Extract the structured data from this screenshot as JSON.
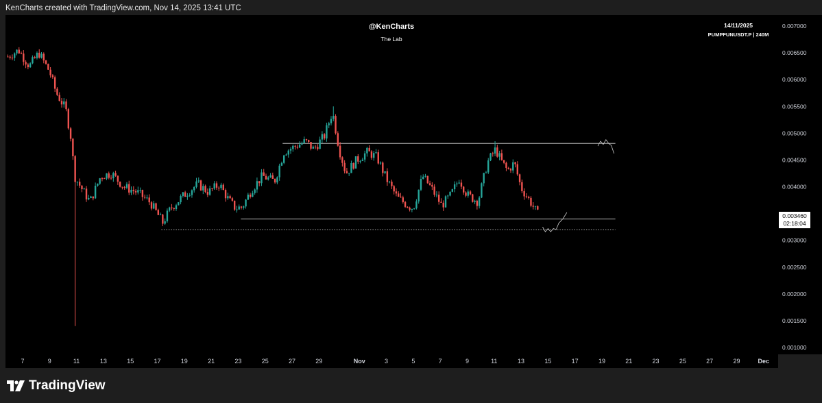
{
  "header_text": "KenCharts created with TradingView.com, Nov 14, 2025 13:41 UTC",
  "watermark": {
    "handle": "@KenCharts",
    "subtitle": "The Lab"
  },
  "info": {
    "date": "14/11/2025",
    "symbol": "PUMPFUNUSDT.P | 240M"
  },
  "logo_text": "TradingView",
  "last_price": {
    "price": "0.003460",
    "countdown": "02:18:04"
  },
  "colors": {
    "up": "#26a69a",
    "down": "#ef5350",
    "background": "#000000",
    "frame": "#1e1e1e",
    "line": "#d9d9d9"
  },
  "chart_data": {
    "type": "candlestick",
    "title": "",
    "y_axis": {
      "ticks": [
        "0.007000",
        "0.006500",
        "0.006000",
        "0.005500",
        "0.005000",
        "0.004500",
        "0.004000",
        "0.003000",
        "0.002500",
        "0.002000",
        "0.001500",
        "0.001000"
      ],
      "range": [
        0.0009,
        0.0072
      ]
    },
    "x_axis": {
      "ticks": [
        {
          "label": "7",
          "day": 7
        },
        {
          "label": "9",
          "day": 9
        },
        {
          "label": "11",
          "day": 11
        },
        {
          "label": "13",
          "day": 13
        },
        {
          "label": "15",
          "day": 15
        },
        {
          "label": "17",
          "day": 17
        },
        {
          "label": "19",
          "day": 19
        },
        {
          "label": "21",
          "day": 21
        },
        {
          "label": "23",
          "day": 23
        },
        {
          "label": "25",
          "day": 25
        },
        {
          "label": "27",
          "day": 27
        },
        {
          "label": "29",
          "day": 29
        },
        {
          "label": "Nov",
          "day": 32
        },
        {
          "label": "3",
          "day": 34
        },
        {
          "label": "5",
          "day": 36
        },
        {
          "label": "7",
          "day": 38
        },
        {
          "label": "9",
          "day": 40
        },
        {
          "label": "11",
          "day": 42
        },
        {
          "label": "13",
          "day": 44
        },
        {
          "label": "15",
          "day": 46
        },
        {
          "label": "17",
          "day": 48
        },
        {
          "label": "19",
          "day": 50
        },
        {
          "label": "21",
          "day": 52
        },
        {
          "label": "23",
          "day": 54
        },
        {
          "label": "25",
          "day": 56
        },
        {
          "label": "27",
          "day": 58
        },
        {
          "label": "29",
          "day": 60
        },
        {
          "label": "Dec",
          "day": 62
        }
      ]
    },
    "anchors": [
      {
        "day": 5.9,
        "price": 0.00643
      },
      {
        "day": 6.7,
        "price": 0.00655
      },
      {
        "day": 7.5,
        "price": 0.00625
      },
      {
        "day": 8.2,
        "price": 0.0065
      },
      {
        "day": 9.0,
        "price": 0.00615
      },
      {
        "day": 9.5,
        "price": 0.00575
      },
      {
        "day": 10.2,
        "price": 0.00545
      },
      {
        "day": 10.6,
        "price": 0.0049
      },
      {
        "day": 10.85,
        "price": 0.0042
      },
      {
        "day": 11.3,
        "price": 0.004
      },
      {
        "day": 12.0,
        "price": 0.00372
      },
      {
        "day": 12.8,
        "price": 0.0042
      },
      {
        "day": 13.6,
        "price": 0.00425
      },
      {
        "day": 14.5,
        "price": 0.004
      },
      {
        "day": 15.5,
        "price": 0.0039
      },
      {
        "day": 16.5,
        "price": 0.0037
      },
      {
        "day": 17.4,
        "price": 0.00333
      },
      {
        "day": 18.0,
        "price": 0.0036
      },
      {
        "day": 19.0,
        "price": 0.00385
      },
      {
        "day": 20.0,
        "price": 0.00405
      },
      {
        "day": 20.8,
        "price": 0.0039
      },
      {
        "day": 21.6,
        "price": 0.00405
      },
      {
        "day": 22.3,
        "price": 0.00375
      },
      {
        "day": 22.8,
        "price": 0.0036
      },
      {
        "day": 23.3,
        "price": 0.00362
      },
      {
        "day": 24.0,
        "price": 0.00395
      },
      {
        "day": 24.8,
        "price": 0.0042
      },
      {
        "day": 25.7,
        "price": 0.0041
      },
      {
        "day": 26.4,
        "price": 0.00465
      },
      {
        "day": 27.2,
        "price": 0.00475
      },
      {
        "day": 28.0,
        "price": 0.00485
      },
      {
        "day": 28.6,
        "price": 0.0047
      },
      {
        "day": 29.4,
        "price": 0.00495
      },
      {
        "day": 30.0,
        "price": 0.0054
      },
      {
        "day": 30.5,
        "price": 0.0047
      },
      {
        "day": 31.0,
        "price": 0.00425
      },
      {
        "day": 31.8,
        "price": 0.0045
      },
      {
        "day": 32.6,
        "price": 0.00465
      },
      {
        "day": 33.3,
        "price": 0.00455
      },
      {
        "day": 34.0,
        "price": 0.00415
      },
      {
        "day": 34.8,
        "price": 0.0038
      },
      {
        "day": 35.6,
        "price": 0.00365
      },
      {
        "day": 36.0,
        "price": 0.0036
      },
      {
        "day": 36.7,
        "price": 0.0042
      },
      {
        "day": 37.4,
        "price": 0.00395
      },
      {
        "day": 38.1,
        "price": 0.00365
      },
      {
        "day": 38.8,
        "price": 0.00385
      },
      {
        "day": 39.4,
        "price": 0.00415
      },
      {
        "day": 40.0,
        "price": 0.00385
      },
      {
        "day": 40.8,
        "price": 0.00372
      },
      {
        "day": 41.5,
        "price": 0.00445
      },
      {
        "day": 42.1,
        "price": 0.0047
      },
      {
        "day": 42.6,
        "price": 0.00445
      },
      {
        "day": 43.0,
        "price": 0.0043
      },
      {
        "day": 43.5,
        "price": 0.00445
      },
      {
        "day": 44.0,
        "price": 0.00398
      },
      {
        "day": 44.7,
        "price": 0.00372
      },
      {
        "day": 45.3,
        "price": 0.00346
      }
    ],
    "spikes": [
      {
        "day": 10.85,
        "low": 0.0014
      },
      {
        "day": 30.0,
        "high": 0.0055
      },
      {
        "day": 42.1,
        "high": 0.00485
      }
    ],
    "levels": [
      {
        "name": "resistance",
        "price": 0.00481,
        "from_day": 26.3,
        "to_day": 51.0,
        "style": "solid"
      },
      {
        "name": "support",
        "price": 0.0034,
        "from_day": 23.2,
        "to_day": 51.0,
        "style": "solid"
      },
      {
        "name": "low",
        "price": 0.0032,
        "from_day": 17.3,
        "to_day": 51.0,
        "style": "dotted"
      }
    ],
    "drawings": [
      {
        "name": "projection-top",
        "points": [
          [
            49.7,
            0.00476
          ],
          [
            49.9,
            0.00485
          ],
          [
            50.1,
            0.00479
          ],
          [
            50.3,
            0.00488
          ],
          [
            50.5,
            0.00481
          ],
          [
            50.7,
            0.00477
          ],
          [
            50.9,
            0.00462
          ]
        ]
      },
      {
        "name": "projection-bottom",
        "points": [
          [
            45.6,
            0.00325
          ],
          [
            45.8,
            0.00316
          ],
          [
            46.0,
            0.00322
          ],
          [
            46.2,
            0.00316
          ],
          [
            46.4,
            0.00322
          ],
          [
            46.6,
            0.0032
          ],
          [
            46.8,
            0.00332
          ],
          [
            47.1,
            0.0034
          ],
          [
            47.4,
            0.00352
          ]
        ]
      }
    ]
  }
}
